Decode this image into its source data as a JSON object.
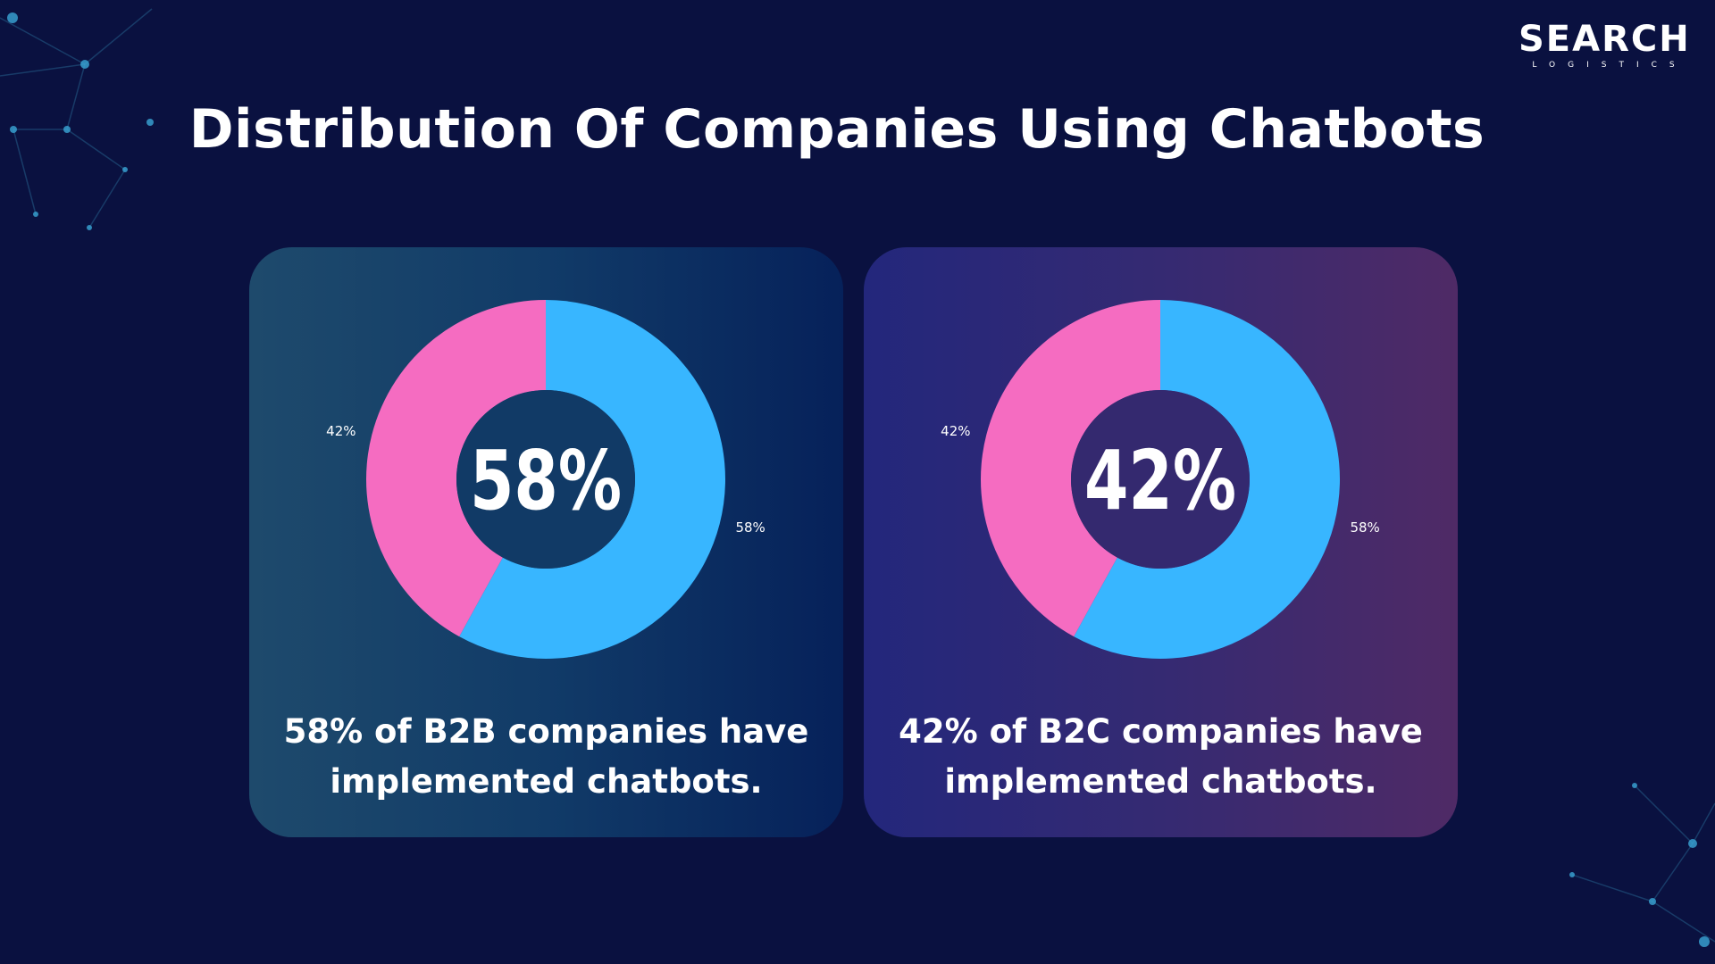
{
  "title": "Distribution Of Companies Using Chatbots",
  "logo": {
    "word": "SEARCH",
    "sub": "LOGISTICS"
  },
  "colors": {
    "background": "#0a1140",
    "segment_blue": "#38b6ff",
    "segment_pink": "#f56cc1",
    "text": "#ffffff"
  },
  "chart_data": [
    {
      "type": "pie",
      "variant": "donut",
      "center_label": "58%",
      "slices": [
        {
          "value": 58,
          "label": "58%",
          "color": "#38b6ff"
        },
        {
          "value": 42,
          "label": "42%",
          "color": "#f56cc1"
        }
      ],
      "caption": "58% of B2B companies have implemented chatbots.",
      "legend": "none"
    },
    {
      "type": "pie",
      "variant": "donut",
      "center_label": "42%",
      "slices": [
        {
          "value": 58,
          "label": "58%",
          "color": "#38b6ff"
        },
        {
          "value": 42,
          "label": "42%",
          "color": "#f56cc1"
        }
      ],
      "caption": "42% of B2C companies have implemented chatbots.",
      "legend": "none"
    }
  ]
}
